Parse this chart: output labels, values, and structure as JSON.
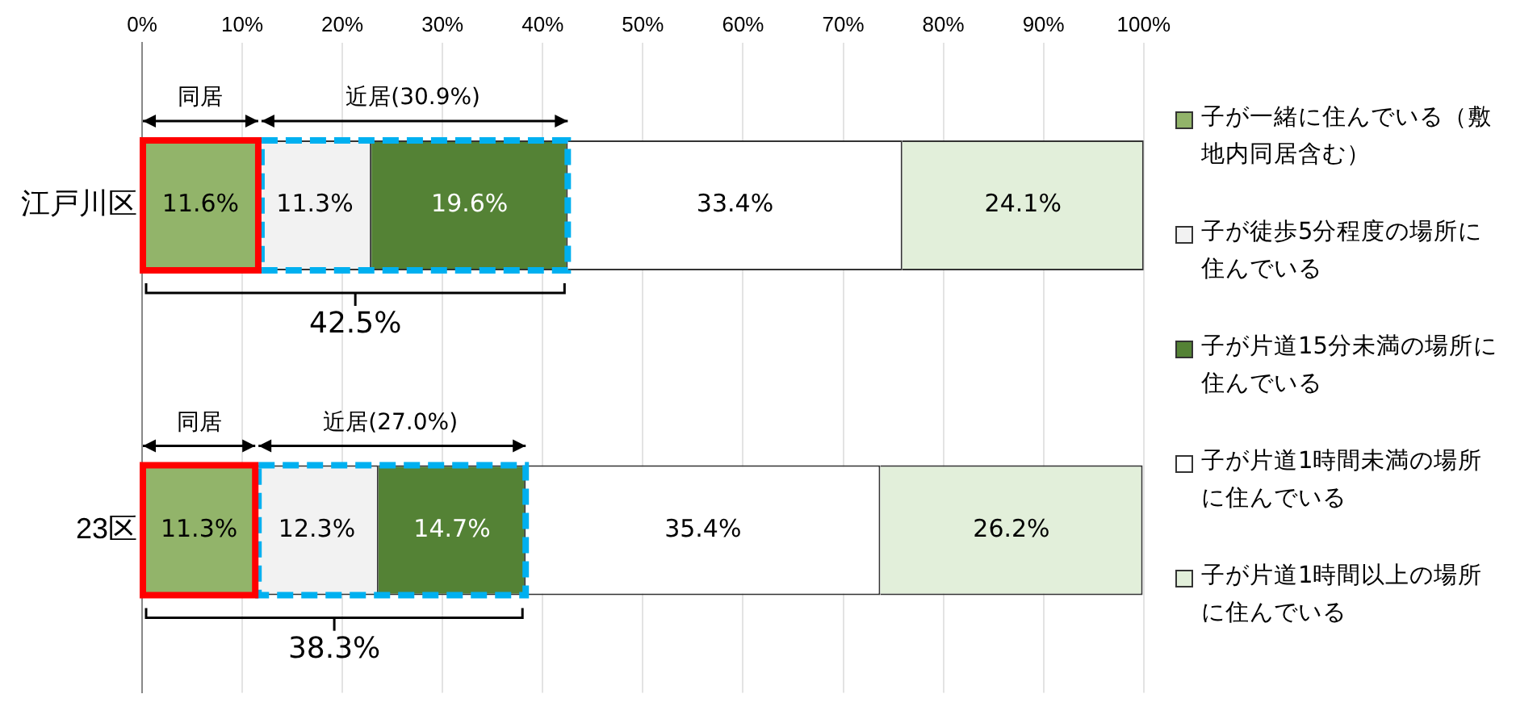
{
  "chart_data": {
    "type": "bar",
    "orientation": "horizontal",
    "stacked": true,
    "categories": [
      "江戸川区",
      "23区"
    ],
    "series": [
      {
        "name": "子が一緒に住んでいる（敷地内同居含む）",
        "color": "#92b46a",
        "values": [
          11.6,
          11.3
        ]
      },
      {
        "name": "子が徒歩5分程度の場所に住んでいる",
        "color": "#f2f2f2",
        "values": [
          11.3,
          12.3
        ]
      },
      {
        "name": "子が片道15分未満の場所に住んでいる",
        "color": "#548235",
        "values": [
          19.6,
          14.7
        ]
      },
      {
        "name": "子が片道1時間未満の場所に住んでいる",
        "color": "#ffffff",
        "values": [
          33.4,
          35.4
        ]
      },
      {
        "name": "子が片道1時間以上の場所に住んでいる",
        "color": "#e2efda",
        "values": [
          24.1,
          26.2
        ]
      }
    ],
    "value_labels": [
      [
        "11.6%",
        "11.3%"
      ],
      [
        "11.3%",
        "12.3%"
      ],
      [
        "19.6%",
        "14.7%"
      ],
      [
        "33.4%",
        "35.4%"
      ],
      [
        "24.1%",
        "26.2%"
      ]
    ],
    "xlim": [
      0,
      100
    ],
    "xticks": [
      {
        "value": 0,
        "label": "0%"
      },
      {
        "value": 10,
        "label": "10%"
      },
      {
        "value": 20,
        "label": "20%"
      },
      {
        "value": 30,
        "label": "30%"
      },
      {
        "value": 40,
        "label": "40%"
      },
      {
        "value": 50,
        "label": "50%"
      },
      {
        "value": 60,
        "label": "60%"
      },
      {
        "value": 70,
        "label": "70%"
      },
      {
        "value": 80,
        "label": "80%"
      },
      {
        "value": 90,
        "label": "90%"
      },
      {
        "value": 100,
        "label": "100%"
      }
    ],
    "grid": "x",
    "legend": "right",
    "annotations": [
      "同居",
      "近居(30.9%)",
      "42.5%",
      "同居",
      "近居(27.0%)",
      "38.3%"
    ]
  }
}
